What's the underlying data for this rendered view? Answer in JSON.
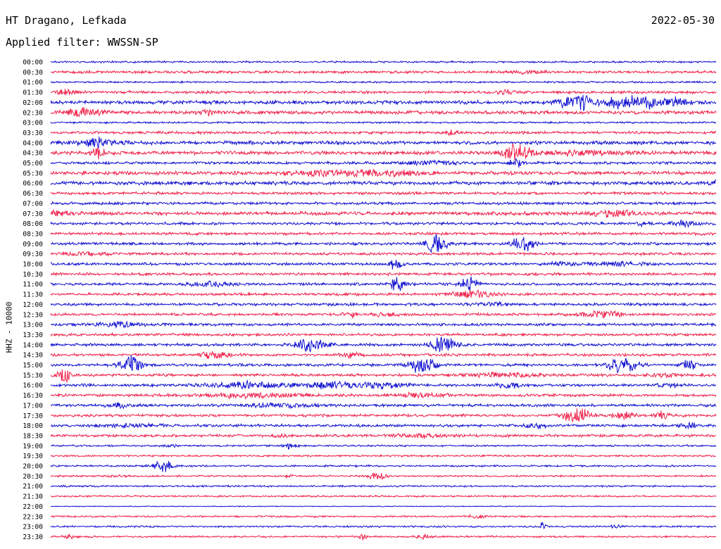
{
  "header": {
    "station": "HT Dragano, Lefkada",
    "date": "2022-05-30",
    "filter": "Applied filter: WWSSN-SP"
  },
  "chart_data": {
    "type": "line",
    "ylabel": "HHZ - 10000",
    "row_labels": [
      "00:00",
      "00:30",
      "01:00",
      "01:30",
      "02:00",
      "02:30",
      "03:00",
      "03:30",
      "04:00",
      "04:30",
      "05:00",
      "05:30",
      "06:00",
      "06:30",
      "07:00",
      "07:30",
      "08:00",
      "08:30",
      "09:00",
      "09:30",
      "10:00",
      "10:30",
      "11:00",
      "11:30",
      "12:00",
      "12:30",
      "13:00",
      "13:30",
      "14:00",
      "14:30",
      "15:00",
      "15:30",
      "16:00",
      "16:30",
      "17:00",
      "17:30",
      "18:00",
      "18:30",
      "19:00",
      "19:30",
      "20:00",
      "20:30",
      "21:00",
      "21:30",
      "22:00",
      "22:30",
      "23:00",
      "23:30"
    ],
    "colors": [
      "#1010d0",
      "#f0204a"
    ],
    "background_noise": [
      2,
      3,
      2,
      3,
      4,
      4,
      2,
      3,
      4,
      4,
      3,
      4,
      4,
      3,
      3,
      4,
      3,
      3,
      3,
      3,
      3,
      3,
      3,
      3,
      3,
      3,
      3,
      3,
      3,
      3,
      3,
      3,
      3,
      3,
      3,
      3,
      3,
      3,
      2,
      2,
      2,
      2,
      2,
      2,
      1,
      2,
      2,
      2
    ],
    "events": [
      {
        "row": 1,
        "t": 0.72,
        "a": 3,
        "w": 0.02
      },
      {
        "row": 3,
        "t": 0.02,
        "a": 5,
        "w": 0.02
      },
      {
        "row": 3,
        "t": 0.69,
        "a": 4,
        "w": 0.02
      },
      {
        "row": 4,
        "t": 0.78,
        "a": 10,
        "w": 0.02
      },
      {
        "row": 4,
        "t": 0.8,
        "a": 18,
        "w": 0.01
      },
      {
        "row": 4,
        "t": 0.86,
        "a": 13,
        "w": 0.03
      },
      {
        "row": 4,
        "t": 0.9,
        "a": 10,
        "w": 0.02
      },
      {
        "row": 4,
        "t": 0.94,
        "a": 10,
        "w": 0.015
      },
      {
        "row": 5,
        "t": 0.05,
        "a": 10,
        "w": 0.03
      },
      {
        "row": 5,
        "t": 0.23,
        "a": 5,
        "w": 0.02
      },
      {
        "row": 7,
        "t": 0.6,
        "a": 5,
        "w": 0.01
      },
      {
        "row": 8,
        "t": 0.07,
        "a": 6,
        "w": 0.04
      },
      {
        "row": 8,
        "t": 0.07,
        "a": 10,
        "w": 0.008
      },
      {
        "row": 9,
        "t": 0.07,
        "a": 12,
        "w": 0.01
      },
      {
        "row": 9,
        "t": 0.7,
        "a": 20,
        "w": 0.02
      },
      {
        "row": 9,
        "t": 0.8,
        "a": 5,
        "w": 0.06
      },
      {
        "row": 10,
        "t": 0.7,
        "a": 10,
        "w": 0.01
      },
      {
        "row": 10,
        "t": 0.58,
        "a": 4,
        "w": 0.05
      },
      {
        "row": 11,
        "t": 0.42,
        "a": 5,
        "w": 0.06
      },
      {
        "row": 11,
        "t": 0.5,
        "a": 5,
        "w": 0.06
      },
      {
        "row": 12,
        "t": 1.0,
        "a": 8,
        "w": 0.005
      },
      {
        "row": 15,
        "t": 0.0,
        "a": 6,
        "w": 0.03
      },
      {
        "row": 15,
        "t": 0.85,
        "a": 8,
        "w": 0.03
      },
      {
        "row": 16,
        "t": 0.95,
        "a": 8,
        "w": 0.02
      },
      {
        "row": 16,
        "t": 0.89,
        "a": 5,
        "w": 0.01
      },
      {
        "row": 18,
        "t": 0.58,
        "a": 22,
        "w": 0.015
      },
      {
        "row": 18,
        "t": 0.71,
        "a": 22,
        "w": 0.015
      },
      {
        "row": 19,
        "t": 0.05,
        "a": 4,
        "w": 0.04
      },
      {
        "row": 20,
        "t": 0.52,
        "a": 15,
        "w": 0.01
      },
      {
        "row": 20,
        "t": 0.76,
        "a": 5,
        "w": 0.01
      },
      {
        "row": 20,
        "t": 0.84,
        "a": 4,
        "w": 0.06
      },
      {
        "row": 22,
        "t": 0.52,
        "a": 18,
        "w": 0.01
      },
      {
        "row": 22,
        "t": 0.63,
        "a": 20,
        "w": 0.012
      },
      {
        "row": 22,
        "t": 0.24,
        "a": 6,
        "w": 0.03
      },
      {
        "row": 23,
        "t": 0.63,
        "a": 8,
        "w": 0.03
      },
      {
        "row": 24,
        "t": 0.67,
        "a": 5,
        "w": 0.02
      },
      {
        "row": 25,
        "t": 0.45,
        "a": 8,
        "w": 0.01
      },
      {
        "row": 25,
        "t": 0.51,
        "a": 5,
        "w": 0.02
      },
      {
        "row": 25,
        "t": 0.83,
        "a": 8,
        "w": 0.03
      },
      {
        "row": 26,
        "t": 0.1,
        "a": 8,
        "w": 0.03
      },
      {
        "row": 28,
        "t": 0.39,
        "a": 18,
        "w": 0.02
      },
      {
        "row": 28,
        "t": 0.59,
        "a": 20,
        "w": 0.02
      },
      {
        "row": 29,
        "t": 0.25,
        "a": 10,
        "w": 0.02
      },
      {
        "row": 29,
        "t": 0.45,
        "a": 6,
        "w": 0.015
      },
      {
        "row": 30,
        "t": 0.12,
        "a": 22,
        "w": 0.015
      },
      {
        "row": 30,
        "t": 0.56,
        "a": 22,
        "w": 0.02
      },
      {
        "row": 30,
        "t": 0.86,
        "a": 22,
        "w": 0.02
      },
      {
        "row": 30,
        "t": 0.96,
        "a": 12,
        "w": 0.01
      },
      {
        "row": 31,
        "t": 0.02,
        "a": 20,
        "w": 0.01
      },
      {
        "row": 31,
        "t": 0.68,
        "a": 5,
        "w": 0.06
      },
      {
        "row": 31,
        "t": 0.92,
        "a": 5,
        "w": 0.02
      },
      {
        "row": 32,
        "t": 0.3,
        "a": 7,
        "w": 0.06
      },
      {
        "row": 32,
        "t": 0.42,
        "a": 7,
        "w": 0.04
      },
      {
        "row": 32,
        "t": 0.5,
        "a": 6,
        "w": 0.04
      },
      {
        "row": 32,
        "t": 0.69,
        "a": 6,
        "w": 0.02
      },
      {
        "row": 32,
        "t": 0.93,
        "a": 6,
        "w": 0.015
      },
      {
        "row": 33,
        "t": 0.3,
        "a": 5,
        "w": 0.08
      },
      {
        "row": 33,
        "t": 0.56,
        "a": 5,
        "w": 0.04
      },
      {
        "row": 34,
        "t": 0.1,
        "a": 7,
        "w": 0.015
      },
      {
        "row": 34,
        "t": 0.35,
        "a": 4,
        "w": 0.06
      },
      {
        "row": 35,
        "t": 0.79,
        "a": 18,
        "w": 0.02
      },
      {
        "row": 35,
        "t": 0.86,
        "a": 8,
        "w": 0.02
      },
      {
        "row": 35,
        "t": 0.92,
        "a": 10,
        "w": 0.01
      },
      {
        "row": 36,
        "t": 0.12,
        "a": 4,
        "w": 0.04
      },
      {
        "row": 36,
        "t": 0.73,
        "a": 6,
        "w": 0.015
      },
      {
        "row": 36,
        "t": 0.96,
        "a": 6,
        "w": 0.015
      },
      {
        "row": 37,
        "t": 0.56,
        "a": 4,
        "w": 0.04
      },
      {
        "row": 37,
        "t": 0.35,
        "a": 4,
        "w": 0.02
      },
      {
        "row": 38,
        "t": 0.36,
        "a": 8,
        "w": 0.01
      },
      {
        "row": 38,
        "t": 0.18,
        "a": 4,
        "w": 0.01
      },
      {
        "row": 40,
        "t": 0.17,
        "a": 14,
        "w": 0.015
      },
      {
        "row": 41,
        "t": 0.49,
        "a": 8,
        "w": 0.015
      },
      {
        "row": 41,
        "t": 0.36,
        "a": 4,
        "w": 0.01
      },
      {
        "row": 41,
        "t": 0.1,
        "a": 4,
        "w": 0.01
      },
      {
        "row": 45,
        "t": 0.64,
        "a": 4,
        "w": 0.01
      },
      {
        "row": 46,
        "t": 0.74,
        "a": 14,
        "w": 0.004
      },
      {
        "row": 46,
        "t": 0.85,
        "a": 4,
        "w": 0.01
      },
      {
        "row": 47,
        "t": 0.47,
        "a": 7,
        "w": 0.008
      },
      {
        "row": 47,
        "t": 0.56,
        "a": 6,
        "w": 0.01
      },
      {
        "row": 47,
        "t": 0.03,
        "a": 4,
        "w": 0.01
      }
    ]
  }
}
